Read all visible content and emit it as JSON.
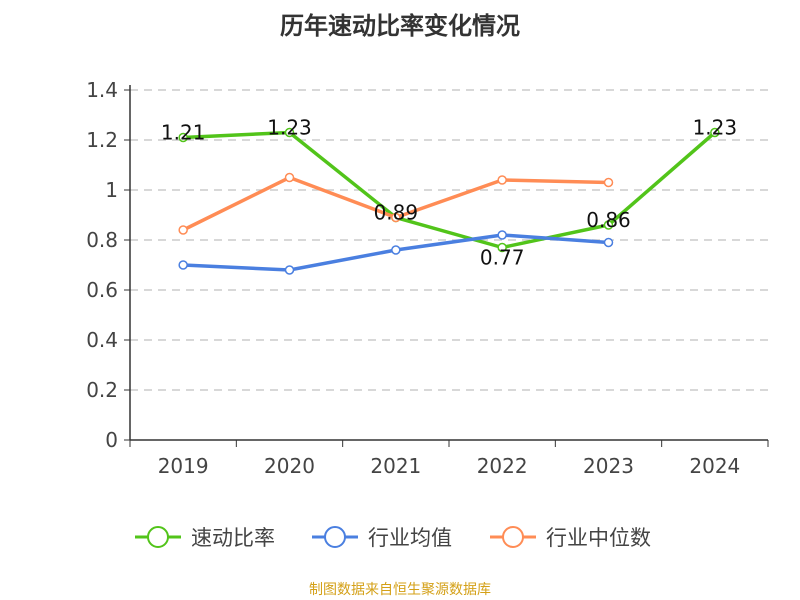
{
  "chart_data": {
    "type": "line",
    "title": "历年速动比率变化情况",
    "categories": [
      "2019",
      "2020",
      "2021",
      "2022",
      "2023",
      "2024"
    ],
    "ylim": [
      0,
      1.4
    ],
    "yticks": [
      "0",
      "0.2",
      "0.4",
      "0.6",
      "0.8",
      "1",
      "1.2",
      "1.4"
    ],
    "grid": true,
    "legend_position": "bottom",
    "series": [
      {
        "name": "速动比率",
        "color": "#52c41a",
        "values": [
          1.21,
          1.23,
          0.89,
          0.77,
          0.86,
          1.23
        ],
        "labels": [
          "1.21",
          "1.23",
          "0.89",
          "0.77",
          "0.86",
          "1.23"
        ]
      },
      {
        "name": "行业均值",
        "color": "#4a7fe0",
        "values": [
          0.7,
          0.68,
          0.76,
          0.82,
          0.79,
          null
        ]
      },
      {
        "name": "行业中位数",
        "color": "#ff8c55",
        "values": [
          0.84,
          1.05,
          0.89,
          1.04,
          1.03,
          null
        ]
      }
    ],
    "source": "制图数据来自恒生聚源数据库"
  }
}
